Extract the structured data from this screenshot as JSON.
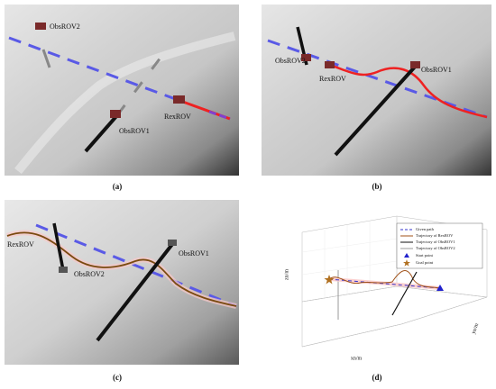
{
  "panels": [
    {
      "caption": "(a)",
      "labels": [
        "ObsROV2",
        "ObsROV1",
        "RexROV"
      ]
    },
    {
      "caption": "(b)",
      "labels": [
        "ObsROV2",
        "RexROV",
        "ObsROV1"
      ]
    },
    {
      "caption": "(c)",
      "labels": [
        "RexROV",
        "ObsROV2",
        "ObsROV1"
      ]
    },
    {
      "caption": "(d)",
      "legend": [
        "Given path",
        "Trajectory of RexROV",
        "Trajectory of ObsROV1",
        "Trajectory of ObsROV2",
        "Start point",
        "Goal point"
      ],
      "axis_labels": {
        "z": "zn/m",
        "x": "xn/m",
        "y": "yn/m"
      }
    }
  ]
}
